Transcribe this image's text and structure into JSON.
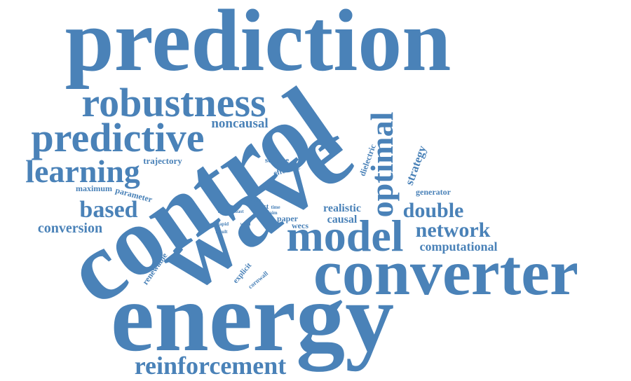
{
  "word_cloud": {
    "color": "#4a82b8",
    "words": [
      {
        "text": "prediction",
        "weight": 100
      },
      {
        "text": "energy",
        "weight": 96
      },
      {
        "text": "wave",
        "weight": 94
      },
      {
        "text": "control",
        "weight": 92
      },
      {
        "text": "converter",
        "weight": 62
      },
      {
        "text": "model",
        "weight": 40
      },
      {
        "text": "robustness",
        "weight": 36
      },
      {
        "text": "predictive",
        "weight": 36
      },
      {
        "text": "optimal",
        "weight": 34
      },
      {
        "text": "learning",
        "weight": 30
      },
      {
        "text": "reinforcement",
        "weight": 26
      },
      {
        "text": "based",
        "weight": 26
      },
      {
        "text": "network",
        "weight": 24
      },
      {
        "text": "double",
        "weight": 22
      },
      {
        "text": "noncausal",
        "weight": 16
      },
      {
        "text": "conversion",
        "weight": 16
      },
      {
        "text": "strategy",
        "weight": 14
      },
      {
        "text": "computational",
        "weight": 14
      },
      {
        "text": "realistic",
        "weight": 13
      },
      {
        "text": "causal",
        "weight": 13
      },
      {
        "text": "trajectory",
        "weight": 11
      },
      {
        "text": "parameter",
        "weight": 10
      },
      {
        "text": "maximum",
        "weight": 10
      },
      {
        "text": "generator",
        "weight": 10
      },
      {
        "text": "scheme",
        "weight": 9
      },
      {
        "text": "effective",
        "weight": 9
      },
      {
        "text": "dielectric",
        "weight": 9
      },
      {
        "text": "paper",
        "weight": 9
      },
      {
        "text": "wecs",
        "weight": 9
      },
      {
        "text": "renewable",
        "weight": 9
      },
      {
        "text": "explicit",
        "weight": 8
      },
      {
        "text": "cornwall",
        "weight": 7
      },
      {
        "text": "most",
        "weight": 7
      },
      {
        "text": "solar",
        "weight": 5
      },
      {
        "text": "aim",
        "weight": 5
      },
      {
        "text": "time",
        "weight": 5
      },
      {
        "text": "body",
        "weight": 5
      },
      {
        "text": "coast",
        "weight": 5
      },
      {
        "text": "rapid",
        "weight": 5
      },
      {
        "text": "wind",
        "weight": 5
      },
      {
        "text": "data",
        "weight": 5
      },
      {
        "text": "result",
        "weight": 5
      }
    ]
  }
}
